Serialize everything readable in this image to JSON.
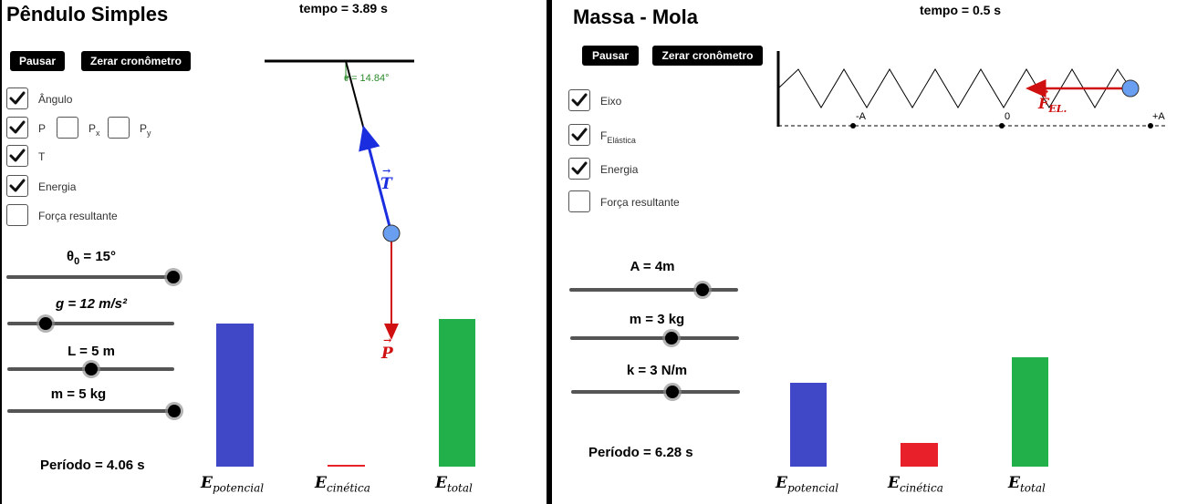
{
  "pendulum": {
    "title": "Pêndulo Simples",
    "tempo": "tempo = 3.89 s",
    "buttons": {
      "pause": "Pausar",
      "reset": "Zerar cronômetro"
    },
    "checkboxes": {
      "angulo": {
        "label": "Ângulo",
        "checked": true
      },
      "p": {
        "label": "P",
        "checked": true
      },
      "px": {
        "label": "P",
        "sub": "x",
        "checked": false
      },
      "py": {
        "label": "P",
        "sub": "y",
        "checked": false
      },
      "t": {
        "label": "T",
        "checked": true
      },
      "energia": {
        "label": "Energia",
        "checked": true
      },
      "forca": {
        "label": "Força resultante",
        "checked": false
      }
    },
    "sliders": {
      "theta": {
        "label_prefix": "θ",
        "label_sub": "0",
        "label_suffix": " = 15°",
        "fraction": 1.0
      },
      "g": {
        "label": "g = 12 m/s²",
        "fraction": 0.23
      },
      "L": {
        "label": "L = 5 m",
        "fraction": 0.5
      },
      "m": {
        "label": "m = 5 kg",
        "fraction": 1.0
      }
    },
    "angle_label": "= 14.84°",
    "angle_symbol": "θ",
    "vector_T": "T",
    "vector_P": "P",
    "periodo": "Período = 4.06 s",
    "energy": {
      "labels": {
        "potencial": "potencial",
        "cinetica": "cinética",
        "total": "total",
        "E": "E"
      },
      "potencial": 0.97,
      "cinetica": 0.0,
      "total": 1.0
    }
  },
  "spring": {
    "title": "Massa - Mola",
    "tempo": "tempo = 0.5 s",
    "buttons": {
      "pause": "Pausar",
      "reset": "Zerar cronômetro"
    },
    "checkboxes": {
      "eixo": {
        "label": "Eixo",
        "checked": true
      },
      "felastica": {
        "label": "F",
        "sub": "Elástica",
        "checked": true
      },
      "energia": {
        "label": "Energia",
        "checked": true
      },
      "forca": {
        "label": "Força resultante",
        "checked": false
      }
    },
    "sliders": {
      "A": {
        "label": "A = 4m",
        "fraction": 0.79
      },
      "m": {
        "label": "m = 3 kg",
        "fraction": 0.6
      },
      "k": {
        "label": "k = 3 N/m",
        "fraction": 0.6
      }
    },
    "axis": {
      "neg": "-A",
      "zero": "0",
      "pos": "+A"
    },
    "force_label": "F",
    "force_sub": "EL.",
    "periodo": "Período = 6.28 s",
    "energy": {
      "labels": {
        "potencial": "potencial",
        "cinetica": "cinética",
        "total": "total",
        "E": "E"
      },
      "potencial": 0.77,
      "cinetica": 0.22,
      "total": 1.0
    }
  },
  "colors": {
    "potential": "#4048c8",
    "kinetic": "#e8202a",
    "total": "#22b04a",
    "tension": "#1a2ee0",
    "weight": "#d01010",
    "angle": "#2a8a2a",
    "bob": "#6a9ef0"
  }
}
